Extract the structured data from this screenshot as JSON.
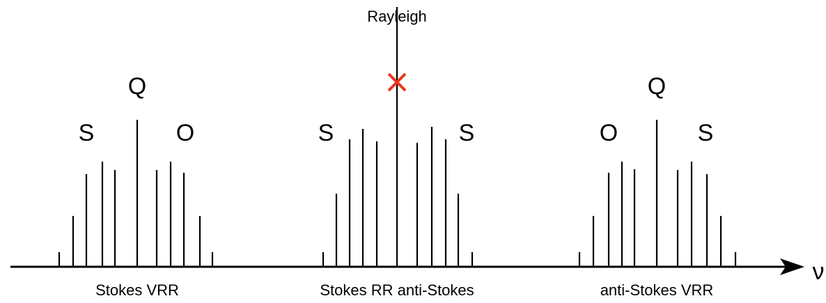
{
  "rayleigh": "Rayleigh",
  "peak_labels": [
    "S",
    "Q",
    "O",
    "S",
    "S",
    "O",
    "Q",
    "S"
  ],
  "group_labels": [
    "Stokes VRR",
    "Stokes RR anti-Stokes",
    "anti-Stokes VRR"
  ],
  "axis_label": "ν"
}
